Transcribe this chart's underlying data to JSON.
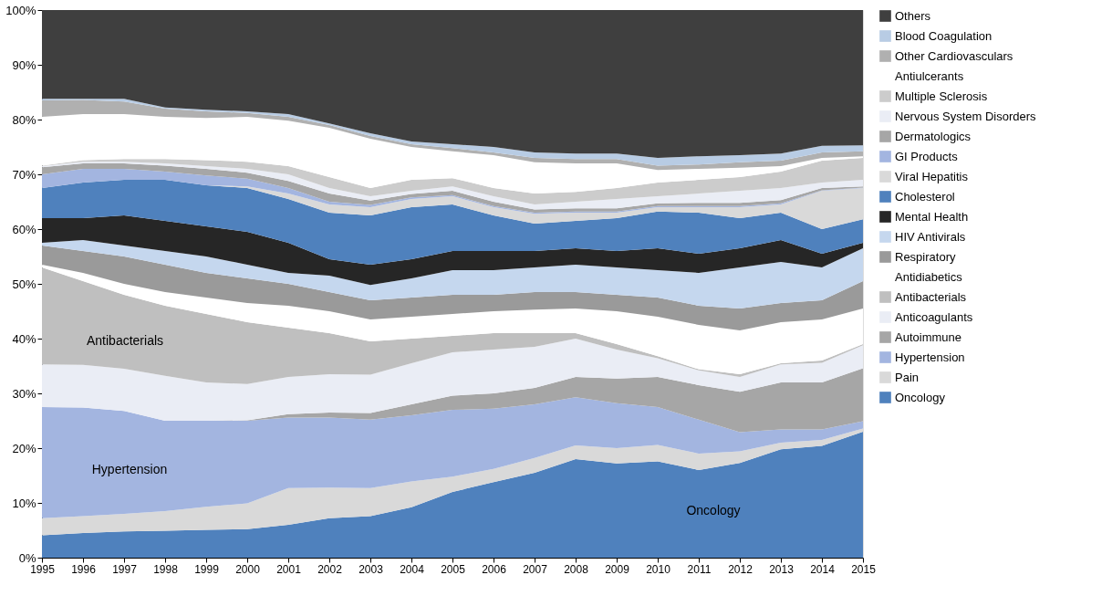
{
  "chart_data": {
    "type": "area",
    "stacked": true,
    "legend": "right",
    "grid": false,
    "x": [
      1995,
      1996,
      1997,
      1998,
      1999,
      2000,
      2001,
      2002,
      2003,
      2004,
      2005,
      2006,
      2007,
      2008,
      2009,
      2010,
      2011,
      2012,
      2013,
      2014,
      2015
    ],
    "xlim": [
      1995,
      2015
    ],
    "xticks": [
      1995,
      1996,
      1997,
      1998,
      1999,
      2000,
      2001,
      2002,
      2003,
      2004,
      2005,
      2006,
      2007,
      2008,
      2009,
      2010,
      2011,
      2012,
      2013,
      2014,
      2015
    ],
    "ylim": [
      0,
      100
    ],
    "yticks": [
      {
        "value": 0,
        "label": "0%"
      },
      {
        "value": 10,
        "label": "10%"
      },
      {
        "value": 20,
        "label": "20%"
      },
      {
        "value": 30,
        "label": "30%"
      },
      {
        "value": 40,
        "label": "40%"
      },
      {
        "value": 50,
        "label": "50%"
      },
      {
        "value": 60,
        "label": "60%"
      },
      {
        "value": 70,
        "label": "70%"
      },
      {
        "value": 80,
        "label": "80%"
      },
      {
        "value": 90,
        "label": "90%"
      },
      {
        "value": 100,
        "label": "100%"
      }
    ],
    "annotations": [
      "Antibacterials",
      "Hypertension",
      "Oncology"
    ],
    "series": [
      {
        "name": "Oncology",
        "color": "#4f81bd",
        "values": [
          4.1,
          4.5,
          4.8,
          4.9,
          5.1,
          5.2,
          6,
          7.2,
          7.6,
          9.2,
          12,
          13.8,
          15.5,
          18,
          17.2,
          17.6,
          16,
          17.3,
          19.8,
          20.4,
          23
        ]
      },
      {
        "name": "Pain",
        "color": "#d9d9d9",
        "values": [
          3.1,
          3.1,
          3.2,
          3.6,
          4.2,
          4.7,
          6.7,
          5.6,
          5.1,
          4.7,
          2.8,
          2.4,
          2.7,
          2.5,
          2.8,
          3.0,
          3.0,
          2.1,
          1.2,
          1.1,
          0.6
        ]
      },
      {
        "name": "Hypertension",
        "color": "#a3b5e0",
        "values": [
          20.3,
          19.8,
          18.8,
          16.5,
          15.7,
          15.1,
          12.9,
          12.8,
          12.5,
          12.1,
          12.2,
          11.0,
          9.8,
          8.8,
          8.2,
          6.9,
          6.2,
          3.5,
          2.4,
          1.9,
          1.3
        ]
      },
      {
        "name": "Autoimmune",
        "color": "#a6a6a6",
        "values": [
          0,
          0,
          0,
          0,
          0,
          0.1,
          0.6,
          0.9,
          1.2,
          2.0,
          2.6,
          2.8,
          3.0,
          3.7,
          4.5,
          5.5,
          6.3,
          7.4,
          8.6,
          8.6,
          9.7
        ]
      },
      {
        "name": "Anticoagulants",
        "color": "#eaedf5",
        "values": [
          7.8,
          7.8,
          7.7,
          8.2,
          7.0,
          6.6,
          6.8,
          7.0,
          7.0,
          7.5,
          7.9,
          8.0,
          7.5,
          7.0,
          5.3,
          3.4,
          2.7,
          2.7,
          3.3,
          3.6,
          4.2
        ]
      },
      {
        "name": "Antibacterials",
        "color": "#bfbfbf",
        "values": [
          17.7,
          15.3,
          13.5,
          12.8,
          12.5,
          11.3,
          9.0,
          7.5,
          6.1,
          4.5,
          3.0,
          3.0,
          2.5,
          1.0,
          1.0,
          0.4,
          0.2,
          0.5,
          0.2,
          0.4,
          0.2
        ]
      },
      {
        "name": "Antidiabetics",
        "color": "#ffffff",
        "values": [
          0.5,
          1.5,
          2.0,
          2.5,
          3.0,
          3.5,
          4.0,
          4.0,
          4.0,
          4.0,
          4.0,
          4.0,
          4.3,
          4.5,
          6.0,
          7.2,
          8.1,
          8.0,
          7.5,
          7.5,
          6.5
        ]
      },
      {
        "name": "Respiratory",
        "color": "#9a9a9a",
        "values": [
          3.5,
          4.0,
          5.0,
          5.0,
          4.5,
          4.5,
          4.0,
          3.5,
          3.5,
          3.5,
          3.5,
          3.0,
          3.2,
          3.0,
          3.0,
          3.5,
          3.5,
          4.0,
          3.5,
          3.5,
          5.0
        ]
      },
      {
        "name": "HIV Antivirals",
        "color": "#c5d7ee",
        "values": [
          0.5,
          2.0,
          2.0,
          2.5,
          3.0,
          2.5,
          2.0,
          3.0,
          2.8,
          3.5,
          4.5,
          4.5,
          4.5,
          5.0,
          5.0,
          5.0,
          6.0,
          7.5,
          7.5,
          6.0,
          6.0
        ]
      },
      {
        "name": "Mental Health",
        "color": "#262626",
        "values": [
          4.5,
          4.0,
          5.5,
          5.5,
          5.5,
          6.0,
          5.5,
          3.0,
          3.7,
          3.5,
          3.5,
          3.5,
          3.0,
          3.0,
          3.0,
          4.0,
          3.5,
          3.5,
          4.0,
          2.5,
          1.0
        ]
      },
      {
        "name": "Cholesterol",
        "color": "#4f81bd",
        "values": [
          5.5,
          6.5,
          6.5,
          7.5,
          7.5,
          8.0,
          8.0,
          8.5,
          9.0,
          9.5,
          8.5,
          6.5,
          5.0,
          5.0,
          6.0,
          6.7,
          7.5,
          5.5,
          5.0,
          4.5,
          4.3
        ]
      },
      {
        "name": "Viral Hepatitis",
        "color": "#d9d9d9",
        "values": [
          0,
          0,
          0,
          0,
          0,
          0.3,
          1.0,
          1.5,
          1.5,
          1.5,
          1.5,
          1.5,
          1.8,
          1.5,
          1.0,
          0.8,
          1.0,
          2.0,
          1.5,
          7.0,
          5.7
        ]
      },
      {
        "name": "GI Products",
        "color": "#a3b5e0",
        "values": [
          2.5,
          2.5,
          2.0,
          1.5,
          1.8,
          1.4,
          1.0,
          0.5,
          0.4,
          0.3,
          0.2,
          0.2,
          0.2,
          0.2,
          0.2,
          0.2,
          0.2,
          0.2,
          0.2,
          0.1,
          0.1
        ]
      },
      {
        "name": "Dermatologics",
        "color": "#a6a6a6",
        "values": [
          1.3,
          1.0,
          1.0,
          1.1,
          1.2,
          1.1,
          1.3,
          1.5,
          0.8,
          0.6,
          0.8,
          0.8,
          0.6,
          0.6,
          0.6,
          0.5,
          0.6,
          0.6,
          0.6,
          0.4,
          0.2
        ]
      },
      {
        "name": "Nervous System Disorders",
        "color": "#eaedf5",
        "values": [
          0.2,
          0.3,
          0.3,
          0.4,
          0.5,
          0.7,
          1.2,
          1.0,
          0.8,
          0.6,
          0.8,
          1.0,
          0.9,
          1.2,
          1.7,
          1.3,
          1.7,
          2.2,
          2.2,
          1.0,
          1.2
        ]
      },
      {
        "name": "Multiple Sclerosis",
        "color": "#cccccc",
        "values": [
          0.1,
          0.3,
          0.5,
          0.8,
          1.1,
          1.3,
          1.5,
          2.0,
          1.5,
          2.0,
          1.5,
          1.5,
          2.0,
          1.8,
          2.0,
          2.5,
          2.5,
          2.5,
          3.0,
          4.0,
          4.0
        ]
      },
      {
        "name": "Antiulcerants",
        "color": "#ffffff",
        "values": [
          8.9,
          8.4,
          8.2,
          7.7,
          7.7,
          8.2,
          8.3,
          9.0,
          9.0,
          6.0,
          4.9,
          6.0,
          5.7,
          5.2,
          4.5,
          2.3,
          2.0,
          1.7,
          1.0,
          0.5,
          0.3
        ]
      },
      {
        "name": "Other Cardiovasculars",
        "color": "#b0b0b0",
        "values": [
          3.0,
          2.6,
          2.3,
          1.5,
          1.2,
          0.7,
          0.7,
          0.5,
          0.5,
          0.5,
          0.6,
          0.5,
          0.8,
          0.8,
          0.8,
          0.8,
          0.8,
          1.0,
          1.0,
          1.0,
          0.9
        ]
      },
      {
        "name": "Blood Coagulation",
        "color": "#b8cce4",
        "values": [
          0.3,
          0.2,
          0.5,
          0.2,
          0.3,
          0.3,
          0.5,
          0.3,
          0.5,
          0.5,
          0.7,
          1.0,
          1.0,
          1.0,
          1.0,
          1.4,
          1.5,
          1.3,
          1.3,
          1.2,
          1.1
        ]
      },
      {
        "name": "Others",
        "color": "#3f3f3f",
        "values": [
          16.2,
          16.2,
          16.2,
          17.8,
          18.2,
          18.5,
          19.0,
          20.7,
          22.5,
          24.0,
          24.5,
          25.0,
          26.0,
          26.2,
          26.2,
          27.0,
          26.7,
          26.5,
          26.2,
          24.8,
          24.7
        ]
      }
    ]
  }
}
